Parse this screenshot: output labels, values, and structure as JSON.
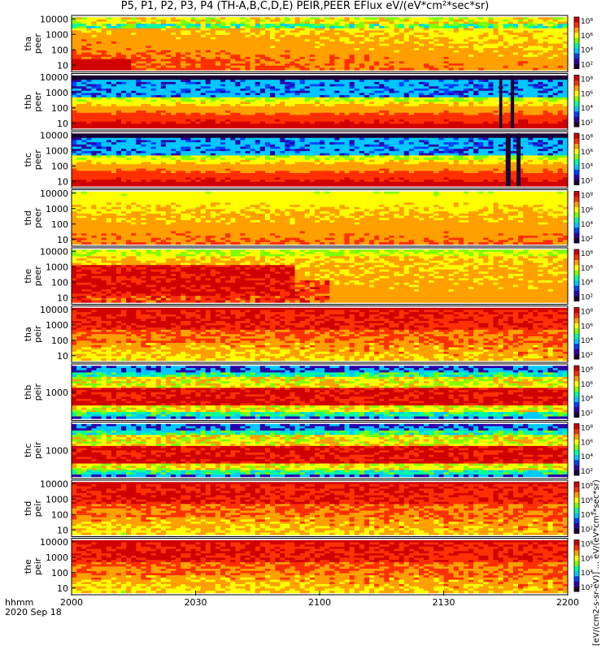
{
  "title": "P5, P1, P2, P3, P4 (TH-A,B,C,D,E) PEIR,PEER EFlux eV/(eV*cm²*sec*sr)",
  "time_axis": {
    "label_top": "hhmm",
    "label_date": "2020 Sep 18",
    "ticks": [
      "2000",
      "2030",
      "2100",
      "2130",
      "2200"
    ]
  },
  "colorbar_units": "[eV/(cm2-s-sr-eV)] ... eV/(eV*cm²*sec*sr)",
  "colors": {
    "palette": [
      "#1a0033",
      "#2b00a8",
      "#0040ff",
      "#00c8ff",
      "#00ffa0",
      "#80ff00",
      "#ffff00",
      "#ffa000",
      "#ff3000",
      "#d00000"
    ],
    "gap": "#ffffff",
    "line": "#000000"
  },
  "chart_data": {
    "type": "heatmap",
    "title": "P5, P1, P2, P3, P4 (TH-A,B,C,D,E) PEIR,PEER EFlux eV/(eV*cm²*sec*sr)",
    "x_range": [
      "2000",
      "2200"
    ],
    "x_ticks": [
      "2000",
      "2030",
      "2100",
      "2130",
      "2200"
    ],
    "panels": [
      {
        "label": [
          "tha",
          "peer"
        ],
        "yticks": [
          "10000",
          "1000",
          "100",
          "10"
        ],
        "colorbar_ticks": [
          "10⁸",
          "10⁶",
          "10⁴",
          "10²"
        ],
        "profile": "peer_a"
      },
      {
        "label": [
          "thb",
          "peer"
        ],
        "yticks": [
          "10000",
          "1000",
          "100",
          "10"
        ],
        "colorbar_ticks": [
          "10⁸",
          "10⁶",
          "10⁴",
          "10²"
        ],
        "profile": "peer_bc",
        "gap_columns": [
          [
            0.862,
            0.868
          ],
          [
            0.885,
            0.892
          ]
        ]
      },
      {
        "label": [
          "thc",
          "peer"
        ],
        "yticks": [
          "10000",
          "1000",
          "100",
          "10"
        ],
        "colorbar_ticks": [
          "10⁸",
          "10⁶",
          "10⁴",
          "10²"
        ],
        "profile": "peer_bc",
        "gap_columns": [
          [
            0.875,
            0.885
          ],
          [
            0.897,
            0.905
          ]
        ]
      },
      {
        "label": [
          "thd",
          "peer"
        ],
        "yticks": [
          "10000",
          "1000",
          "100",
          "10"
        ],
        "colorbar_ticks": [
          "10⁸",
          "10⁶",
          "10⁴",
          "10²"
        ],
        "profile": "peer_d"
      },
      {
        "label": [
          "the",
          "peer"
        ],
        "yticks": [
          "10000",
          "1000",
          "100",
          "10"
        ],
        "colorbar_ticks": [
          "10⁸",
          "10⁶",
          "10⁴",
          "10²"
        ],
        "profile": "peer_e"
      },
      {
        "label": [
          "tha",
          "peir"
        ],
        "yticks": [
          "10000",
          "1000",
          "100",
          "10"
        ],
        "colorbar_ticks": [
          "10⁸",
          "10⁶",
          "10⁴",
          "10²"
        ],
        "profile": "peir"
      },
      {
        "label": [
          "thb",
          "peir"
        ],
        "yticks": [
          "1000"
        ],
        "colorbar_ticks": [
          "10⁸",
          "10⁶",
          "10⁴",
          "10²"
        ],
        "profile": "peir_bc"
      },
      {
        "label": [
          "thc",
          "peir"
        ],
        "yticks": [
          "1000"
        ],
        "colorbar_ticks": [
          "10⁸",
          "10⁶",
          "10⁴",
          "10²"
        ],
        "profile": "peir_bc"
      },
      {
        "label": [
          "thd",
          "peir"
        ],
        "yticks": [
          "10000",
          "1000",
          "100",
          "10"
        ],
        "colorbar_ticks": [
          "10⁸",
          "10⁶",
          "10⁴",
          "10²"
        ],
        "profile": "peir"
      },
      {
        "label": [
          "the",
          "peir"
        ],
        "yticks": [
          "10000",
          "1000",
          "100",
          "10"
        ],
        "colorbar_ticks": [
          "10⁸",
          "10⁶",
          "10⁴",
          "10²"
        ],
        "profile": "peir"
      }
    ]
  }
}
